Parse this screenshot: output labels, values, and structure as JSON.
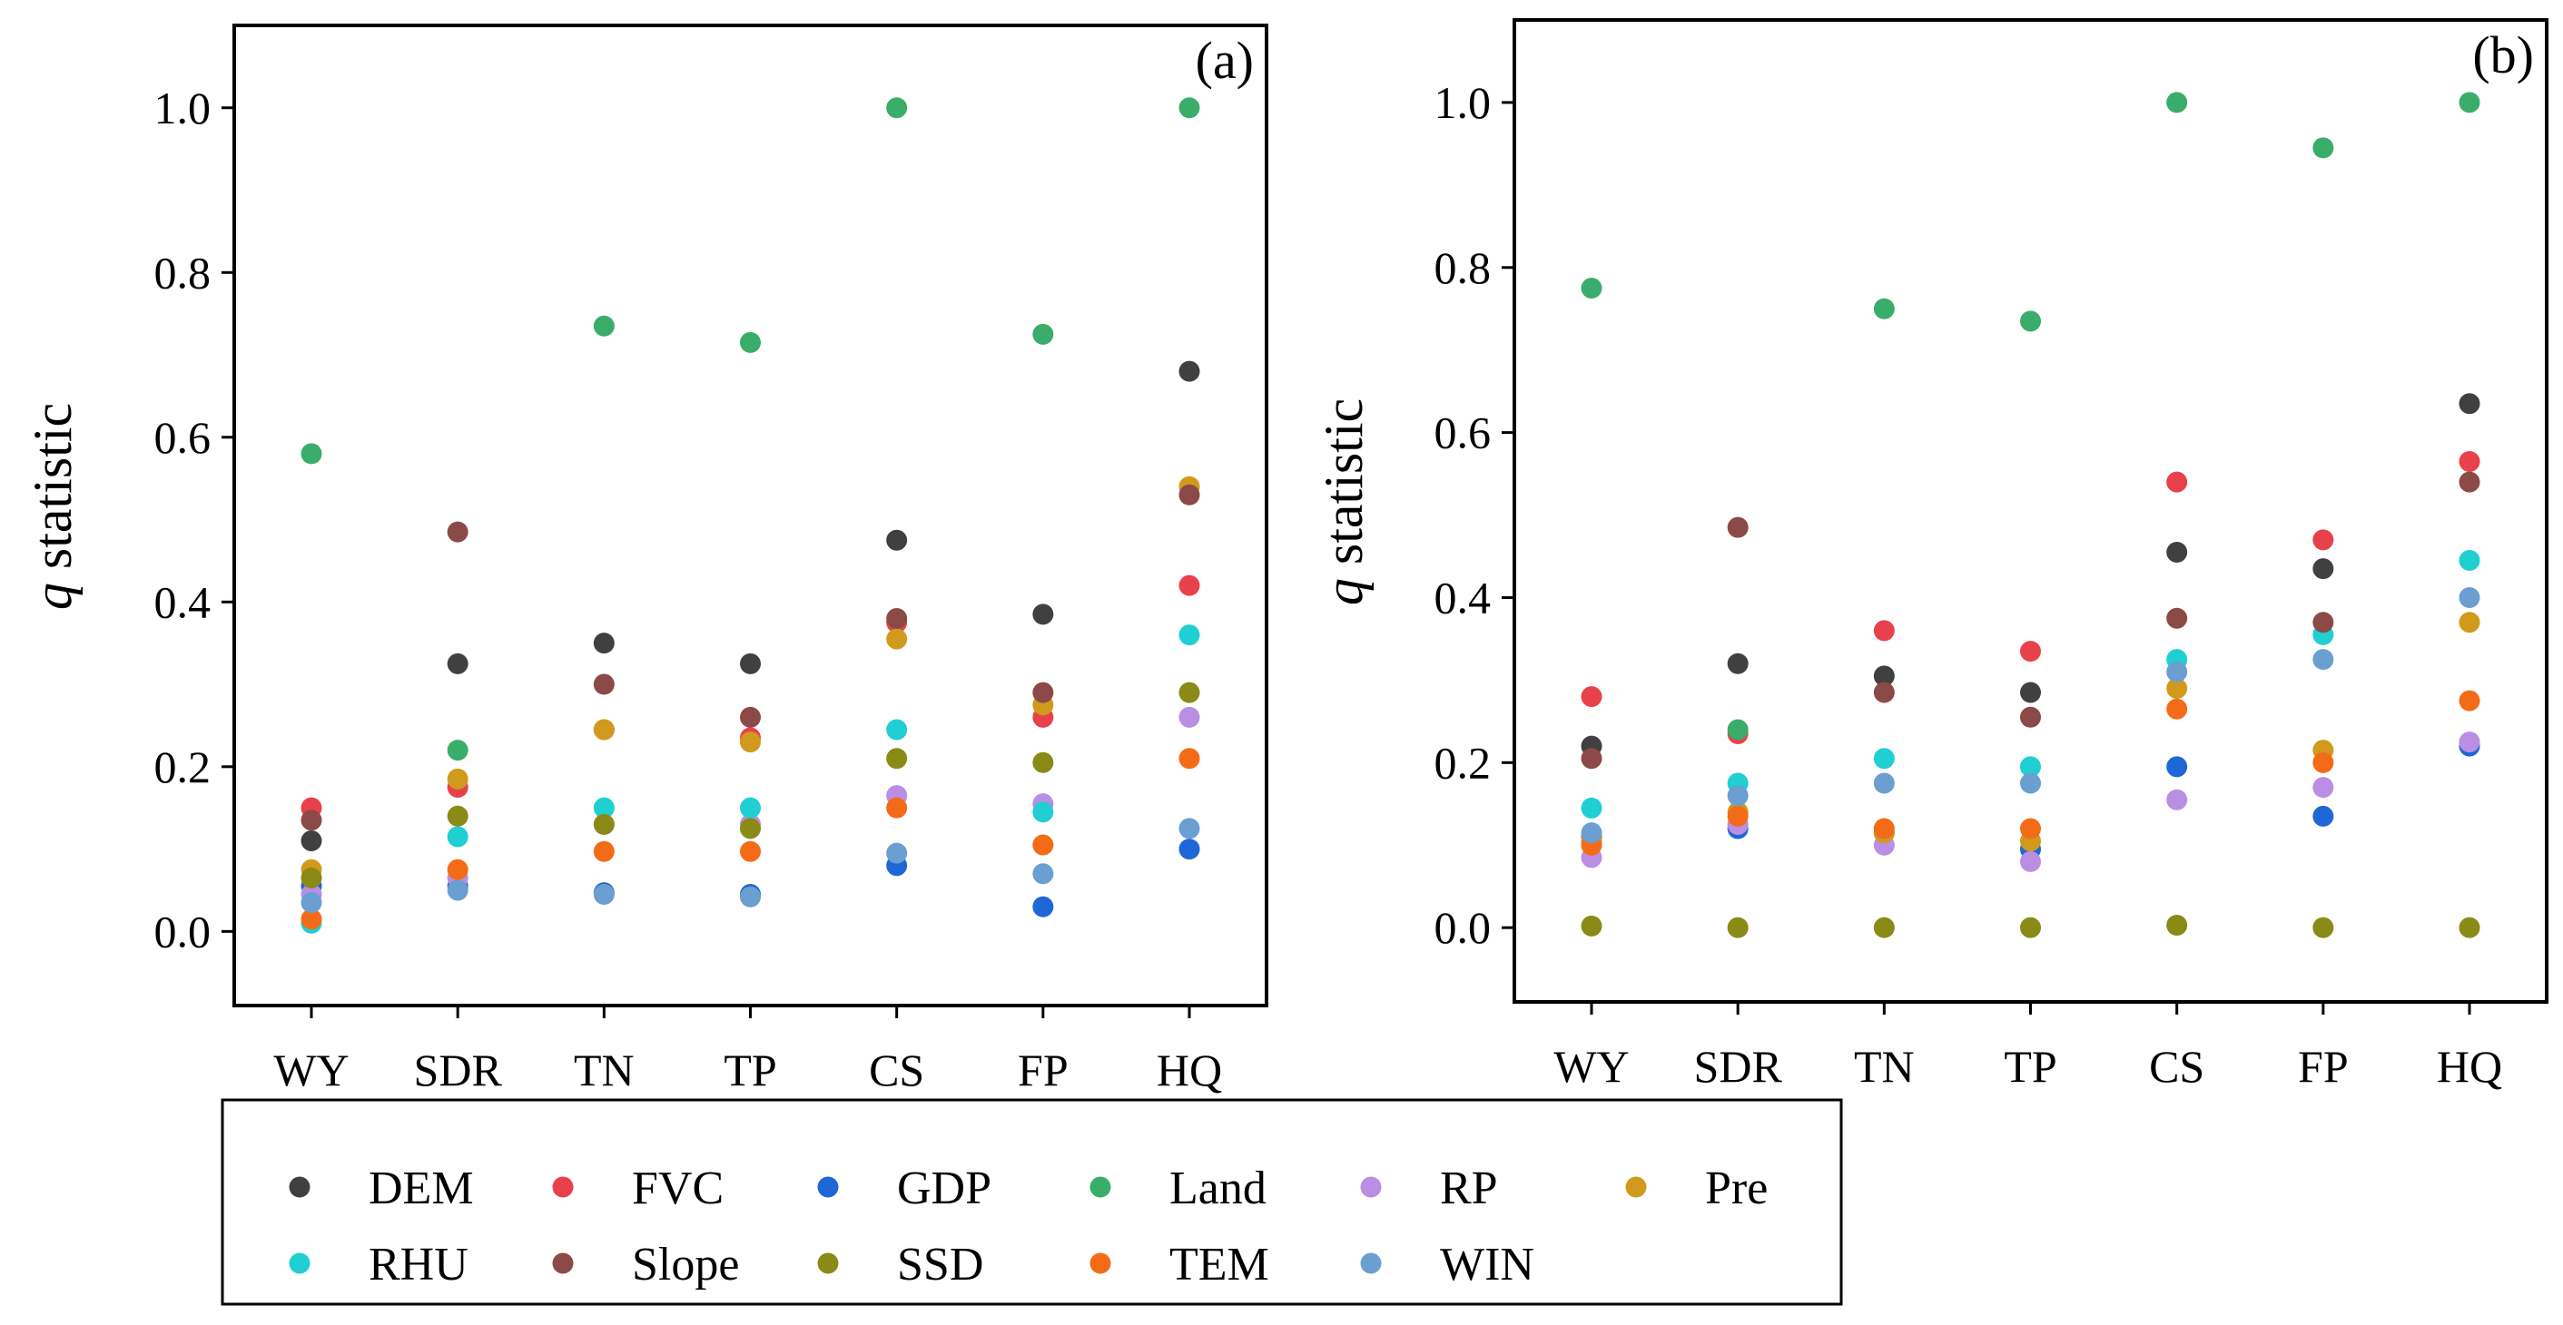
{
  "chart_data": [
    {
      "type": "scatter",
      "panel_label": "(a)",
      "categories": [
        "WY",
        "SDR",
        "TN",
        "TP",
        "CS",
        "FP",
        "HQ"
      ],
      "ylabel_italic": "q",
      "ylabel_rest": " statistic",
      "ylim": [
        -0.09,
        1.1
      ],
      "yticks": [
        0.0,
        0.2,
        0.4,
        0.6,
        0.8,
        1.0
      ],
      "ytick_labels": [
        "0.0",
        "0.2",
        "0.4",
        "0.6",
        "0.8",
        "1.0"
      ],
      "grid": false,
      "series": [
        {
          "name": "DEM",
          "values": [
            0.11,
            0.325,
            0.35,
            0.325,
            0.475,
            0.385,
            0.68
          ]
        },
        {
          "name": "FVC",
          "values": [
            0.15,
            0.175,
            0.245,
            0.235,
            0.375,
            0.26,
            0.42
          ]
        },
        {
          "name": "GDP",
          "values": [
            0.055,
            0.055,
            0.047,
            0.045,
            0.08,
            0.03,
            0.1
          ]
        },
        {
          "name": "Land",
          "values": [
            0.58,
            0.22,
            0.735,
            0.715,
            1.0,
            0.725,
            1.0
          ]
        },
        {
          "name": "RP",
          "values": [
            0.045,
            0.065,
            0.13,
            0.13,
            0.165,
            0.155,
            0.26
          ]
        },
        {
          "name": "Pre",
          "values": [
            0.075,
            0.185,
            0.245,
            0.23,
            0.355,
            0.275,
            0.54
          ]
        },
        {
          "name": "RHU",
          "values": [
            0.01,
            0.115,
            0.15,
            0.15,
            0.245,
            0.145,
            0.36
          ]
        },
        {
          "name": "Slope",
          "values": [
            0.135,
            0.485,
            0.3,
            0.26,
            0.38,
            0.29,
            0.53
          ]
        },
        {
          "name": "SSD",
          "values": [
            0.065,
            0.14,
            0.13,
            0.125,
            0.21,
            0.205,
            0.29
          ]
        },
        {
          "name": "TEM",
          "values": [
            0.015,
            0.075,
            0.097,
            0.097,
            0.15,
            0.105,
            0.21
          ]
        },
        {
          "name": "WIN",
          "values": [
            0.035,
            0.05,
            0.045,
            0.042,
            0.095,
            0.07,
            0.125
          ]
        }
      ]
    },
    {
      "type": "scatter",
      "panel_label": "(b)",
      "categories": [
        "WY",
        "SDR",
        "TN",
        "TP",
        "CS",
        "FP",
        "HQ"
      ],
      "ylabel_italic": "q",
      "ylabel_rest": " statistic",
      "ylim": [
        -0.09,
        1.1
      ],
      "yticks": [
        0.0,
        0.2,
        0.4,
        0.6,
        0.8,
        1.0
      ],
      "ytick_labels": [
        "0.0",
        "0.2",
        "0.4",
        "0.6",
        "0.8",
        "1.0"
      ],
      "grid": false,
      "series": [
        {
          "name": "DEM",
          "values": [
            0.22,
            0.32,
            0.305,
            0.285,
            0.455,
            0.435,
            0.635
          ]
        },
        {
          "name": "FVC",
          "values": [
            0.28,
            0.235,
            0.36,
            0.335,
            0.54,
            0.47,
            0.565
          ]
        },
        {
          "name": "GDP",
          "values": [
            0.11,
            0.12,
            0.115,
            0.095,
            0.195,
            0.135,
            0.22
          ]
        },
        {
          "name": "Land",
          "values": [
            0.775,
            0.24,
            0.75,
            0.735,
            1.0,
            0.945,
            1.0
          ]
        },
        {
          "name": "RP",
          "values": [
            0.085,
            0.125,
            0.1,
            0.08,
            0.155,
            0.17,
            0.225
          ]
        },
        {
          "name": "Pre",
          "values": [
            0.105,
            0.14,
            0.115,
            0.105,
            0.29,
            0.215,
            0.37
          ]
        },
        {
          "name": "RHU",
          "values": [
            0.145,
            0.175,
            0.205,
            0.195,
            0.325,
            0.355,
            0.445
          ]
        },
        {
          "name": "Slope",
          "values": [
            0.205,
            0.485,
            0.285,
            0.255,
            0.375,
            0.37,
            0.54
          ]
        },
        {
          "name": "SSD",
          "values": [
            0.002,
            0.0,
            0.0,
            0.0,
            0.003,
            0.0,
            0.0
          ]
        },
        {
          "name": "TEM",
          "values": [
            0.1,
            0.135,
            0.12,
            0.12,
            0.265,
            0.2,
            0.275
          ]
        },
        {
          "name": "WIN",
          "values": [
            0.115,
            0.16,
            0.175,
            0.175,
            0.31,
            0.325,
            0.4
          ]
        }
      ]
    }
  ],
  "legend": {
    "placement": "bottom",
    "entries": [
      {
        "name": "DEM",
        "color": "#404040"
      },
      {
        "name": "FVC",
        "color": "#e8414b"
      },
      {
        "name": "GDP",
        "color": "#1f67d6"
      },
      {
        "name": "Land",
        "color": "#3aad6a"
      },
      {
        "name": "RP",
        "color": "#b98ee3"
      },
      {
        "name": "Pre",
        "color": "#d19a1d"
      },
      {
        "name": "RHU",
        "color": "#1fcfd1"
      },
      {
        "name": "Slope",
        "color": "#8b4a47"
      },
      {
        "name": "SSD",
        "color": "#8a8a17"
      },
      {
        "name": "TEM",
        "color": "#f46b17"
      },
      {
        "name": "WIN",
        "color": "#6b9ed1"
      }
    ]
  }
}
